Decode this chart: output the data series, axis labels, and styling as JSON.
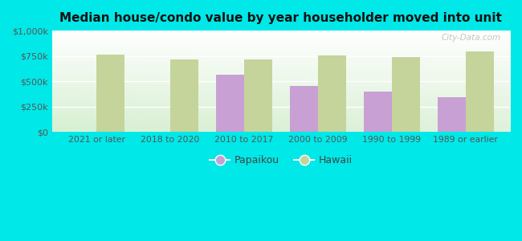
{
  "title": "Median house/condo value by year householder moved into unit",
  "categories": [
    "2021 or later",
    "2018 to 2020",
    "2010 to 2017",
    "2000 to 2009",
    "1990 to 1999",
    "1989 or earlier"
  ],
  "papaikou_values": [
    null,
    null,
    565000,
    456000,
    400000,
    345000
  ],
  "hawaii_values": [
    762000,
    718000,
    715000,
    759000,
    740000,
    795000
  ],
  "papaikou_color": "#c8a0d4",
  "hawaii_color": "#c5d49a",
  "background_color": "#00e8e8",
  "plot_bg_top": "#ffffff",
  "plot_bg_bottom": "#d8f0d0",
  "ylim": [
    0,
    1000000
  ],
  "yticks": [
    0,
    250000,
    500000,
    750000,
    1000000
  ],
  "ytick_labels": [
    "$0",
    "$250k",
    "$500k",
    "$750k",
    "$1,000k"
  ],
  "legend_papaikou": "Papaikou",
  "legend_hawaii": "Hawaii",
  "watermark": "City-Data.com",
  "bar_width": 0.38
}
